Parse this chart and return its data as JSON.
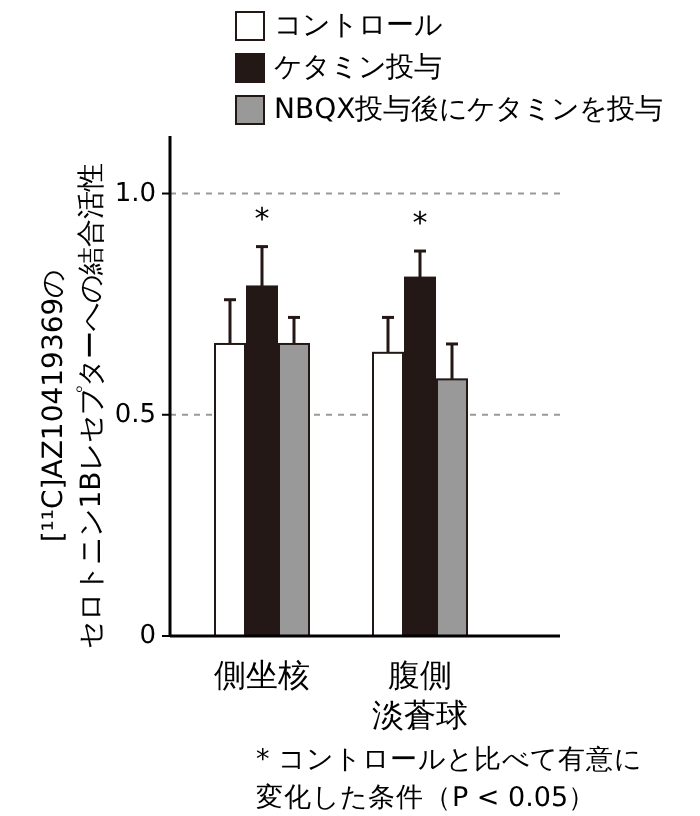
{
  "chart_data": {
    "type": "bar",
    "ylabel": "[¹¹C]AZ10419369のセロトニン1Bレセプターへの結合活性",
    "categories": [
      "側坐核",
      "腹側淡蒼球"
    ],
    "series": [
      {
        "name": "コントロール",
        "color": "#ffffff",
        "values": [
          0.66,
          0.64
        ],
        "errors": [
          [
            0.66,
            0.76
          ],
          [
            0.64,
            0.72
          ]
        ]
      },
      {
        "name": "ケタミン投与",
        "color": "#231815",
        "values": [
          0.79,
          0.81
        ],
        "errors": [
          [
            0.79,
            0.88
          ],
          [
            0.81,
            0.87
          ]
        ]
      },
      {
        "name": "NBQX投与後にケタミンを投与",
        "color": "#999999",
        "values": [
          0.66,
          0.58
        ],
        "errors": [
          [
            0.66,
            0.72
          ],
          [
            0.58,
            0.66
          ]
        ]
      }
    ],
    "ylim": [
      0,
      1.13
    ],
    "yticks": [
      0,
      0.5,
      {
        "value": 1,
        "label": "1.0"
      }
    ],
    "grid": "y",
    "legend": "top",
    "annotations": [
      "*",
      "*",
      "* コントロールと比べて有意に変化した条件（P < 0.05）"
    ]
  }
}
